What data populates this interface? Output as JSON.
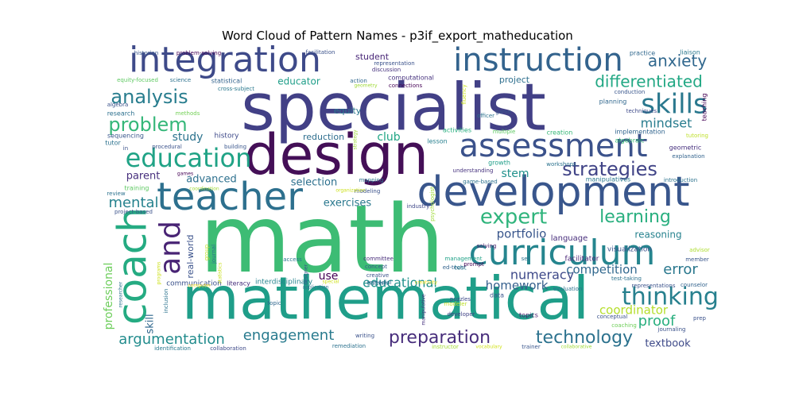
{
  "chart_data": {
    "type": "wordcloud",
    "title": "Word Cloud of Pattern Names - p3if_export_matheducation",
    "words": [
      {
        "text": "math",
        "color": "#3dbc74"
      },
      {
        "text": "specialist",
        "color": "#424086"
      },
      {
        "text": "mathematical",
        "color": "#1f9e89"
      },
      {
        "text": "design",
        "color": "#440f57"
      },
      {
        "text": "development",
        "color": "#39568c"
      },
      {
        "text": "teacher",
        "color": "#2d708e"
      },
      {
        "text": "curriculum",
        "color": "#25858e"
      },
      {
        "text": "integration",
        "color": "#3e4a89"
      },
      {
        "text": "instruction",
        "color": "#33638d"
      },
      {
        "text": "assessment",
        "color": "#3b528b"
      },
      {
        "text": "coach",
        "color": "#25ab82"
      },
      {
        "text": "and",
        "color": "#482374"
      },
      {
        "text": "education",
        "color": "#20a386"
      },
      {
        "text": "skills",
        "color": "#2a788e"
      },
      {
        "text": "thinking",
        "color": "#27808e"
      },
      {
        "text": "strategies",
        "color": "#414487"
      },
      {
        "text": "expert",
        "color": "#2fb47c"
      },
      {
        "text": "learning",
        "color": "#29af7f"
      },
      {
        "text": "differentiated",
        "color": "#22a884"
      },
      {
        "text": "analysis",
        "color": "#287d8e"
      },
      {
        "text": "problem",
        "color": "#35b779"
      },
      {
        "text": "anxiety",
        "color": "#31688e"
      },
      {
        "text": "technology",
        "color": "#2c728e"
      },
      {
        "text": "preparation",
        "color": "#472d7b"
      },
      {
        "text": "engagement",
        "color": "#297b8e"
      },
      {
        "text": "argumentation",
        "color": "#228c8d"
      },
      {
        "text": "mindset",
        "color": "#287c8e"
      },
      {
        "text": "educational",
        "color": "#21918c"
      },
      {
        "text": "numeracy",
        "color": "#3e4989"
      },
      {
        "text": "error",
        "color": "#2a788e"
      },
      {
        "text": "proof",
        "color": "#29af7f"
      },
      {
        "text": "mental",
        "color": "#26828e"
      },
      {
        "text": "portfolio",
        "color": "#39568c"
      },
      {
        "text": "competition",
        "color": "#31688e"
      },
      {
        "text": "homework",
        "color": "#355f8d"
      },
      {
        "text": "coordinator",
        "color": "#b5de2b"
      },
      {
        "text": "professional",
        "color": "#6ccd5a"
      },
      {
        "text": "study",
        "color": "#2c738e"
      },
      {
        "text": "selection",
        "color": "#2d708e"
      },
      {
        "text": "advanced",
        "color": "#2d708e"
      },
      {
        "text": "exercises",
        "color": "#2a788e"
      },
      {
        "text": "stem",
        "color": "#21918c"
      },
      {
        "text": "parent",
        "color": "#472f7d"
      },
      {
        "text": "textbook",
        "color": "#3e4a89"
      },
      {
        "text": "reasoning",
        "color": "#26828e"
      },
      {
        "text": "educator",
        "color": "#1f9e89"
      },
      {
        "text": "project",
        "color": "#2e6f8e"
      },
      {
        "text": "student",
        "color": "#482677"
      },
      {
        "text": "club",
        "color": "#21a685"
      },
      {
        "text": "equity",
        "color": "#2a788e"
      },
      {
        "text": "use",
        "color": "#440154"
      },
      {
        "text": "skill",
        "color": "#31688e"
      },
      {
        "text": "real-world",
        "color": "#3b528b"
      },
      {
        "text": "reduction",
        "color": "#2e6e8e"
      },
      {
        "text": "history",
        "color": "#3e4a89"
      },
      {
        "text": "language",
        "color": "#472d7b"
      },
      {
        "text": "communication",
        "color": "#3b528b"
      },
      {
        "text": "interdisciplinary",
        "color": "#25848e"
      },
      {
        "text": "visualization",
        "color": "#3b528b"
      },
      {
        "text": "facilitator",
        "color": "#482576"
      },
      {
        "text": "manipulatives",
        "color": "#2a788e"
      },
      {
        "text": "growth",
        "color": "#1f9e89"
      },
      {
        "text": "planning",
        "color": "#31688e"
      },
      {
        "text": "research",
        "color": "#2d708e"
      },
      {
        "text": "sequencing",
        "color": "#39568c"
      },
      {
        "text": "tutor",
        "color": "#2c728e"
      },
      {
        "text": "statistical",
        "color": "#33638d"
      },
      {
        "text": "computational",
        "color": "#46327e"
      },
      {
        "text": "lesson",
        "color": "#277f8e"
      },
      {
        "text": "activities",
        "color": "#29af7f"
      },
      {
        "text": "geometric",
        "color": "#46307e"
      },
      {
        "text": "implementation",
        "color": "#32658e"
      },
      {
        "text": "algebraic",
        "color": "#3aba76"
      },
      {
        "text": "creation",
        "color": "#37b878"
      },
      {
        "text": "modeling",
        "color": "#3b528b"
      },
      {
        "text": "training",
        "color": "#5ec962"
      },
      {
        "text": "industry",
        "color": "#3f4788"
      },
      {
        "text": "remedial",
        "color": "#31688e"
      },
      {
        "text": "creativity",
        "color": "#fde725"
      },
      {
        "text": "concept",
        "color": "#38588c"
      },
      {
        "text": "creative",
        "color": "#3b528b"
      },
      {
        "text": "pattern",
        "color": "#2c738e"
      },
      {
        "text": "committee",
        "color": "#472c7a"
      },
      {
        "text": "access",
        "color": "#2a788e"
      },
      {
        "text": "management",
        "color": "#1fa187"
      },
      {
        "text": "ed-tech",
        "color": "#33638d"
      },
      {
        "text": "solving",
        "color": "#48196b"
      },
      {
        "text": "test",
        "color": "#2a788e"
      },
      {
        "text": "puzzles",
        "color": "#3e4989"
      },
      {
        "text": "data",
        "color": "#39568c"
      },
      {
        "text": "evaluation",
        "color": "#2c728e"
      },
      {
        "text": "topics",
        "color": "#481a6c"
      },
      {
        "text": "developer",
        "color": "#414487"
      },
      {
        "text": "conceptual",
        "color": "#3b528b"
      },
      {
        "text": "coaching",
        "color": "#6ece58"
      },
      {
        "text": "journaling",
        "color": "#3b528b"
      },
      {
        "text": "literacy",
        "color": "#472e7c"
      },
      {
        "text": "inclusion",
        "color": "#2c738e"
      },
      {
        "text": "identification",
        "color": "#2a788e"
      },
      {
        "text": "collaboration",
        "color": "#3e4a89"
      },
      {
        "text": "remediation",
        "color": "#2c728e"
      },
      {
        "text": "writing",
        "color": "#3b528b"
      },
      {
        "text": "instructor",
        "color": "#a5db36"
      },
      {
        "text": "vocabulary",
        "color": "#d2e21b"
      },
      {
        "text": "trainer",
        "color": "#39568c"
      },
      {
        "text": "collaborative",
        "color": "#a0da39"
      },
      {
        "text": "test-taking",
        "color": "#2c728e"
      },
      {
        "text": "representations",
        "color": "#3b528b"
      },
      {
        "text": "member",
        "color": "#39568c"
      },
      {
        "text": "advisor",
        "color": "#addc30"
      },
      {
        "text": "counselor",
        "color": "#33638d"
      },
      {
        "text": "prep",
        "color": "#3b528b"
      },
      {
        "text": "introduction",
        "color": "#2c728e"
      },
      {
        "text": "explanation",
        "color": "#33638d"
      },
      {
        "text": "tutoring",
        "color": "#bddf26"
      },
      {
        "text": "teaching",
        "color": "#440154"
      },
      {
        "text": "conduction",
        "color": "#39568c"
      },
      {
        "text": "techniques",
        "color": "#3e4a89"
      },
      {
        "text": "game",
        "color": "#39568c"
      },
      {
        "text": "fluency",
        "color": "#cae11f"
      },
      {
        "text": "officer",
        "color": "#2c728e"
      },
      {
        "text": "multiple",
        "color": "#5ec962"
      },
      {
        "text": "practice",
        "color": "#31688e"
      },
      {
        "text": "liaison",
        "color": "#2a788e"
      },
      {
        "text": "historian",
        "color": "#39568c"
      },
      {
        "text": "problem-solving",
        "color": "#440154"
      },
      {
        "text": "facilitation",
        "color": "#3b528b"
      },
      {
        "text": "representation",
        "color": "#3b528b"
      },
      {
        "text": "discussion",
        "color": "#46327e"
      },
      {
        "text": "equity-focused",
        "color": "#5ec962"
      },
      {
        "text": "science",
        "color": "#2c728e"
      },
      {
        "text": "cross-subject",
        "color": "#2a788e"
      },
      {
        "text": "action",
        "color": "#31688e"
      },
      {
        "text": "geometry",
        "color": "#a0da39"
      },
      {
        "text": "connections",
        "color": "#440154"
      },
      {
        "text": "algebra",
        "color": "#3b528b"
      },
      {
        "text": "methods",
        "color": "#73d056"
      },
      {
        "text": "strategy",
        "color": "#a0da39"
      },
      {
        "text": "understanding",
        "color": "#46327e"
      },
      {
        "text": "workshops",
        "color": "#2c728e"
      },
      {
        "text": "mapping",
        "color": "#2c728e"
      },
      {
        "text": "organization",
        "color": "#cde11d"
      },
      {
        "text": "game-based",
        "color": "#2c728e"
      },
      {
        "text": "psychologist",
        "color": "#a0da39"
      },
      {
        "text": "in",
        "color": "#3b528b"
      },
      {
        "text": "procedural",
        "color": "#3b528b"
      },
      {
        "text": "building",
        "color": "#39568c"
      },
      {
        "text": "games",
        "color": "#440154"
      },
      {
        "text": "coordination",
        "color": "#a0da39"
      },
      {
        "text": "review",
        "color": "#2c728e"
      },
      {
        "text": "project-based",
        "color": "#3b528b"
      },
      {
        "text": "journal",
        "color": "#2c728e"
      },
      {
        "text": "group",
        "color": "#bddf26"
      },
      {
        "text": "statistics",
        "color": "#cae11f"
      },
      {
        "text": "programs",
        "color": "#cde11d"
      },
      {
        "text": "computer",
        "color": "#fde725"
      },
      {
        "text": "researcher",
        "color": "#2c728e"
      },
      {
        "text": "designer",
        "color": "#3b528b"
      },
      {
        "text": "application",
        "color": "#2c728e"
      },
      {
        "text": "topic",
        "color": "#31688e"
      },
      {
        "text": "special",
        "color": "#cde11d"
      },
      {
        "text": "manipulative",
        "color": "#46327e"
      },
      {
        "text": "modeler",
        "color": "#bddf26"
      },
      {
        "text": "prompt",
        "color": "#440154"
      },
      {
        "text": "set",
        "color": "#2c728e"
      }
    ]
  }
}
